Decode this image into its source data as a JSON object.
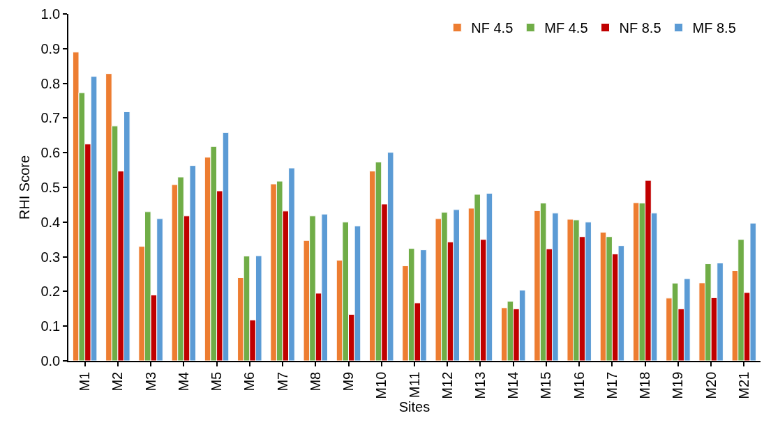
{
  "chart_data": {
    "type": "bar",
    "xlabel": "Sites",
    "ylabel": "RHI Score",
    "categories": [
      "M1",
      "M2",
      "M3",
      "M4",
      "M5",
      "M6",
      "M7",
      "M8",
      "M9",
      "M10",
      "M11",
      "M12",
      "M13",
      "M14",
      "M15",
      "M16",
      "M17",
      "M18",
      "M19",
      "M20",
      "M21"
    ],
    "series": [
      {
        "name": "NF 4.5",
        "color": "#ed7d31",
        "values": [
          0.89,
          0.828,
          0.33,
          0.508,
          0.587,
          0.24,
          0.51,
          0.347,
          0.29,
          0.547,
          0.274,
          0.41,
          0.44,
          0.153,
          0.433,
          0.408,
          0.371,
          0.456,
          0.181,
          0.225,
          0.26
        ]
      },
      {
        "name": "MF 4.5",
        "color": "#70ad47",
        "values": [
          0.773,
          0.677,
          0.43,
          0.53,
          0.618,
          0.302,
          0.518,
          0.418,
          0.4,
          0.573,
          0.324,
          0.428,
          0.48,
          0.172,
          0.455,
          0.406,
          0.358,
          0.455,
          0.224,
          0.28,
          0.35
        ]
      },
      {
        "name": "NF 8.5",
        "color": "#c00000",
        "values": [
          0.625,
          0.547,
          0.19,
          0.418,
          0.49,
          0.118,
          0.432,
          0.195,
          0.134,
          0.452,
          0.167,
          0.343,
          0.35,
          0.15,
          0.323,
          0.358,
          0.308,
          0.52,
          0.15,
          0.182,
          0.197
        ]
      },
      {
        "name": "MF 8.5",
        "color": "#5b9bd5",
        "values": [
          0.82,
          0.718,
          0.41,
          0.563,
          0.658,
          0.303,
          0.556,
          0.423,
          0.389,
          0.601,
          0.32,
          0.436,
          0.483,
          0.204,
          0.426,
          0.4,
          0.332,
          0.426,
          0.237,
          0.282,
          0.397
        ]
      }
    ],
    "ylim": [
      0,
      1.0
    ],
    "yticks": [
      {
        "value": 0,
        "label": "0.0"
      },
      {
        "value": 0.1,
        "label": "0.1"
      },
      {
        "value": 0.2,
        "label": "0.2"
      },
      {
        "value": 0.3,
        "label": "0.3"
      },
      {
        "value": 0.4,
        "label": "0.4"
      },
      {
        "value": 0.5,
        "label": "0.5"
      },
      {
        "value": 0.6,
        "label": "0.6"
      },
      {
        "value": 0.7,
        "label": "0.7"
      },
      {
        "value": 0.8,
        "label": "0.8"
      },
      {
        "value": 0.9,
        "label": "0.9"
      },
      {
        "value": 1.0,
        "label": "1.0"
      }
    ],
    "grid": false,
    "legend": "top right"
  }
}
